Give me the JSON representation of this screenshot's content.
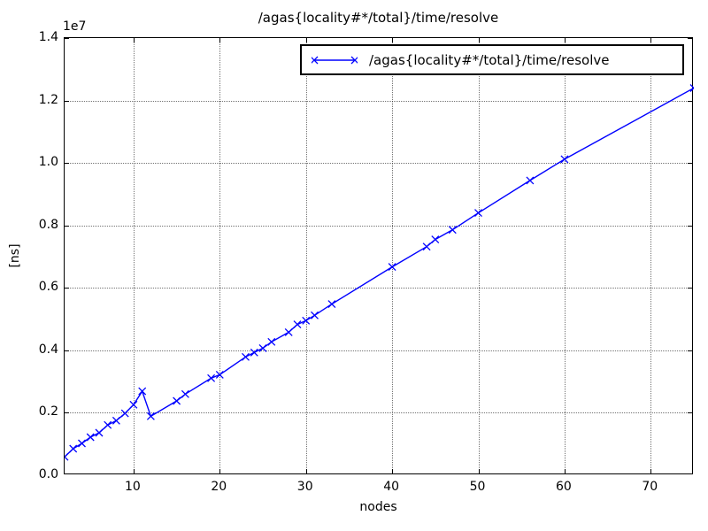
{
  "title": "/agas{locality#*/total}/time/resolve",
  "axes": {
    "xlabel": "nodes",
    "ylabel": "[ns]",
    "offset_label": "1e7"
  },
  "legend": {
    "label": "/agas{locality#*/total}/time/resolve"
  },
  "colors": {
    "series": "#0000ff",
    "axis": "#000000",
    "background": "#ffffff"
  },
  "chart_data": {
    "type": "line",
    "title": "/agas{locality#*/total}/time/resolve",
    "xlabel": "nodes",
    "ylabel": "[ns]",
    "series_name": "/agas{locality#*/total}/time/resolve",
    "marker": "x",
    "line_color": "#0000ff",
    "grid": true,
    "legend_position": "upper right",
    "xlim": [
      2,
      75
    ],
    "ylim": [
      0,
      14000000
    ],
    "xticks": [
      10,
      20,
      30,
      40,
      50,
      60,
      70
    ],
    "xtick_labels": [
      "10",
      "20",
      "30",
      "40",
      "50",
      "60",
      "70"
    ],
    "yticks": [
      0,
      2000000,
      4000000,
      6000000,
      8000000,
      10000000,
      12000000,
      14000000
    ],
    "ytick_labels": [
      "0.0",
      "0.2",
      "0.4",
      "0.6",
      "0.8",
      "1.0",
      "1.2",
      "1.4"
    ],
    "x": [
      2,
      3,
      4,
      5,
      6,
      7,
      8,
      9,
      10,
      11,
      12,
      15,
      16,
      19,
      20,
      23,
      24,
      25,
      26,
      28,
      29,
      30,
      31,
      33,
      40,
      44,
      45,
      47,
      50,
      56,
      60,
      75
    ],
    "y": [
      590000,
      850000,
      1020000,
      1220000,
      1360000,
      1610000,
      1750000,
      1980000,
      2260000,
      2690000,
      1890000,
      2380000,
      2600000,
      3110000,
      3220000,
      3790000,
      3930000,
      4070000,
      4270000,
      4580000,
      4830000,
      4950000,
      5120000,
      5480000,
      6670000,
      7320000,
      7550000,
      7860000,
      8400000,
      9440000,
      10120000,
      12400000
    ]
  }
}
